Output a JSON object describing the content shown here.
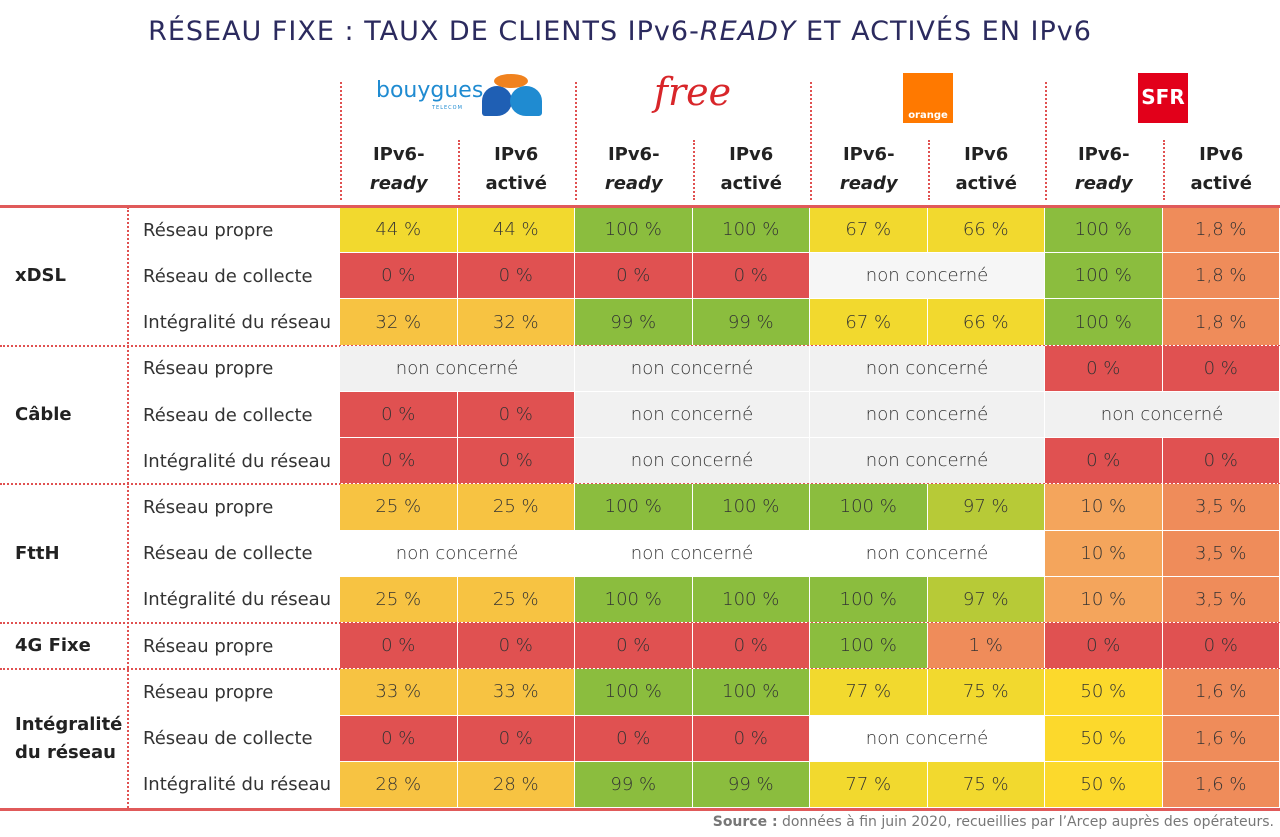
{
  "title": {
    "parts": [
      "RÉSEAU FIXE :  TAUX DE CLIENTS IPv6-",
      "READY",
      " ET ACTIVÉS EN IPv6"
    ]
  },
  "operators": [
    {
      "logo_text": [
        "bouygues",
        "TELECOM"
      ]
    },
    {
      "logo_text": [
        "free"
      ]
    },
    {
      "logo_text": [
        "orange"
      ]
    },
    {
      "logo_text": [
        "SFR"
      ]
    }
  ],
  "column_headers": [
    [
      "IPv6-",
      "ready"
    ],
    [
      "IPv6",
      "activé"
    ],
    [
      "IPv6-",
      "ready"
    ],
    [
      "IPv6",
      "activé"
    ],
    [
      "IPv6-",
      "ready"
    ],
    [
      "IPv6",
      "activé"
    ],
    [
      "IPv6-",
      "ready"
    ],
    [
      "IPv6",
      "activé"
    ]
  ],
  "groups": [
    {
      "label": "xDSL",
      "rows": [
        {
          "label": "Réseau propre",
          "cells": [
            {
              "text": "44 %",
              "color": "#f2d92e"
            },
            {
              "text": "44 %",
              "color": "#f2d92e"
            },
            {
              "text": "100 %",
              "color": "#8bbd3e"
            },
            {
              "text": "100 %",
              "color": "#8bbd3e"
            },
            {
              "text": "67 %",
              "color": "#f2d92e"
            },
            {
              "text": "66 %",
              "color": "#f2d92e"
            },
            {
              "text": "100 %",
              "color": "#8bbd3e"
            },
            {
              "text": "1,8 %",
              "color": "#ef8c5a"
            }
          ]
        },
        {
          "label": "Réseau de collecte",
          "cells": [
            {
              "text": "0 %",
              "color": "#e05151"
            },
            {
              "text": "0 %",
              "color": "#e05151"
            },
            {
              "text": "0 %",
              "color": "#e05151"
            },
            {
              "text": "0 %",
              "color": "#e05151"
            },
            {
              "text": "non concerné",
              "color": "#f6f6f6",
              "span": 2
            },
            {
              "text": "100 %",
              "color": "#8bbd3e"
            },
            {
              "text": "1,8 %",
              "color": "#ef8c5a"
            }
          ]
        },
        {
          "label": "Intégralité du réseau",
          "cells": [
            {
              "text": "32 %",
              "color": "#f7c342"
            },
            {
              "text": "32 %",
              "color": "#f7c342"
            },
            {
              "text": "99 %",
              "color": "#8bbd3e"
            },
            {
              "text": "99 %",
              "color": "#8bbd3e"
            },
            {
              "text": "67 %",
              "color": "#f2d92e"
            },
            {
              "text": "66 %",
              "color": "#f2d92e"
            },
            {
              "text": "100 %",
              "color": "#8bbd3e"
            },
            {
              "text": "1,8 %",
              "color": "#ef8c5a"
            }
          ]
        }
      ]
    },
    {
      "label": "Câble",
      "rows": [
        {
          "label": "Réseau propre",
          "cells": [
            {
              "text": "non concerné",
              "color": "#f1f1f1",
              "span": 2
            },
            {
              "text": "non concerné",
              "color": "#f1f1f1",
              "span": 2
            },
            {
              "text": "non concerné",
              "color": "#f1f1f1",
              "span": 2
            },
            {
              "text": "0 %",
              "color": "#e05151"
            },
            {
              "text": "0 %",
              "color": "#e05151"
            }
          ]
        },
        {
          "label": "Réseau de collecte",
          "cells": [
            {
              "text": "0 %",
              "color": "#e05151"
            },
            {
              "text": "0 %",
              "color": "#e05151"
            },
            {
              "text": "non concerné",
              "color": "#f1f1f1",
              "span": 2
            },
            {
              "text": "non concerné",
              "color": "#f1f1f1",
              "span": 2
            },
            {
              "text": "non concerné",
              "color": "#f1f1f1",
              "span": 2
            }
          ]
        },
        {
          "label": "Intégralité du réseau",
          "cells": [
            {
              "text": "0 %",
              "color": "#e05151"
            },
            {
              "text": "0 %",
              "color": "#e05151"
            },
            {
              "text": "non concerné",
              "color": "#f1f1f1",
              "span": 2
            },
            {
              "text": "non concerné",
              "color": "#f1f1f1",
              "span": 2
            },
            {
              "text": "0 %",
              "color": "#e05151"
            },
            {
              "text": "0 %",
              "color": "#e05151"
            }
          ]
        }
      ]
    },
    {
      "label": "FttH",
      "rows": [
        {
          "label": "Réseau propre",
          "cells": [
            {
              "text": "25 %",
              "color": "#f7c342"
            },
            {
              "text": "25 %",
              "color": "#f7c342"
            },
            {
              "text": "100 %",
              "color": "#8bbd3e"
            },
            {
              "text": "100 %",
              "color": "#8bbd3e"
            },
            {
              "text": "100 %",
              "color": "#8bbd3e"
            },
            {
              "text": "97 %",
              "color": "#b7ca37"
            },
            {
              "text": "10 %",
              "color": "#f4a55c"
            },
            {
              "text": "3,5 %",
              "color": "#ef8c5a"
            }
          ]
        },
        {
          "label": "Réseau de collecte",
          "cells": [
            {
              "text": "non concerné",
              "color": "#ffffff",
              "span": 2
            },
            {
              "text": "non concerné",
              "color": "#ffffff",
              "span": 2
            },
            {
              "text": "non concerné",
              "color": "#ffffff",
              "span": 2
            },
            {
              "text": "10 %",
              "color": "#f4a55c"
            },
            {
              "text": "3,5 %",
              "color": "#ef8c5a"
            }
          ]
        },
        {
          "label": "Intégralité du réseau",
          "cells": [
            {
              "text": "25 %",
              "color": "#f7c342"
            },
            {
              "text": "25 %",
              "color": "#f7c342"
            },
            {
              "text": "100 %",
              "color": "#8bbd3e"
            },
            {
              "text": "100 %",
              "color": "#8bbd3e"
            },
            {
              "text": "100 %",
              "color": "#8bbd3e"
            },
            {
              "text": "97 %",
              "color": "#b7ca37"
            },
            {
              "text": "10 %",
              "color": "#f4a55c"
            },
            {
              "text": "3,5 %",
              "color": "#ef8c5a"
            }
          ]
        }
      ]
    },
    {
      "label": "4G Fixe",
      "rows": [
        {
          "label": "Réseau propre",
          "cells": [
            {
              "text": "0 %",
              "color": "#e05151"
            },
            {
              "text": "0 %",
              "color": "#e05151"
            },
            {
              "text": "0 %",
              "color": "#e05151"
            },
            {
              "text": "0 %",
              "color": "#e05151"
            },
            {
              "text": "100 %",
              "color": "#8bbd3e"
            },
            {
              "text": "1 %",
              "color": "#ef8c5a"
            },
            {
              "text": "0 %",
              "color": "#e05151"
            },
            {
              "text": "0 %",
              "color": "#e05151"
            }
          ]
        }
      ]
    },
    {
      "label": "Intégralité du réseau",
      "rows": [
        {
          "label": "Réseau propre",
          "cells": [
            {
              "text": "33 %",
              "color": "#f7c342"
            },
            {
              "text": "33 %",
              "color": "#f7c342"
            },
            {
              "text": "100 %",
              "color": "#8bbd3e"
            },
            {
              "text": "100 %",
              "color": "#8bbd3e"
            },
            {
              "text": "77 %",
              "color": "#f2d92e"
            },
            {
              "text": "75 %",
              "color": "#f2d92e"
            },
            {
              "text": "50 %",
              "color": "#fcd92c"
            },
            {
              "text": "1,6 %",
              "color": "#ef8c5a"
            }
          ]
        },
        {
          "label": "Réseau de collecte",
          "cells": [
            {
              "text": "0 %",
              "color": "#e05151"
            },
            {
              "text": "0 %",
              "color": "#e05151"
            },
            {
              "text": "0 %",
              "color": "#e05151"
            },
            {
              "text": "0 %",
              "color": "#e05151"
            },
            {
              "text": "non concerné",
              "color": "#ffffff",
              "span": 2
            },
            {
              "text": "50 %",
              "color": "#fcd92c"
            },
            {
              "text": "1,6 %",
              "color": "#ef8c5a"
            }
          ]
        },
        {
          "label": "Intégralité du réseau",
          "cells": [
            {
              "text": "28 %",
              "color": "#f7c342"
            },
            {
              "text": "28 %",
              "color": "#f7c342"
            },
            {
              "text": "99 %",
              "color": "#8bbd3e"
            },
            {
              "text": "99 %",
              "color": "#8bbd3e"
            },
            {
              "text": "77 %",
              "color": "#f2d92e"
            },
            {
              "text": "75 %",
              "color": "#f2d92e"
            },
            {
              "text": "50 %",
              "color": "#fcd92c"
            },
            {
              "text": "1,6 %",
              "color": "#ef8c5a"
            }
          ]
        }
      ]
    }
  ],
  "source": {
    "label": "Source :",
    "text": "données à fin juin 2020, recueillies par l’Arcep auprès des opérateurs."
  }
}
